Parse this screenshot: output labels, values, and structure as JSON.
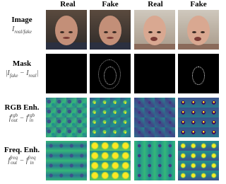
{
  "columns": [
    "Real",
    "Fake",
    "Real",
    "Fake"
  ],
  "rows": [
    {
      "name": "Image",
      "formula": [
        {
          "t": "I",
          "sub": "real/fake"
        }
      ]
    },
    {
      "name": "Mask",
      "formula": [
        {
          "t": "|I",
          "sub": "fake"
        },
        {
          "t": " − I",
          "sub": "real"
        },
        {
          "t": "|"
        }
      ]
    },
    {
      "name": "RGB Enh.",
      "formula": [
        {
          "t": "f",
          "sup": "rgb",
          "sub": "out"
        },
        {
          "t": " − f",
          "sup": "rgb",
          "sub": "in"
        }
      ]
    },
    {
      "name": "Freq. Enh.",
      "formula": [
        {
          "t": "f",
          "sup": "freq",
          "sub": "out"
        },
        {
          "t": " − f",
          "sup": "freq",
          "sub": "in"
        }
      ]
    }
  ]
}
